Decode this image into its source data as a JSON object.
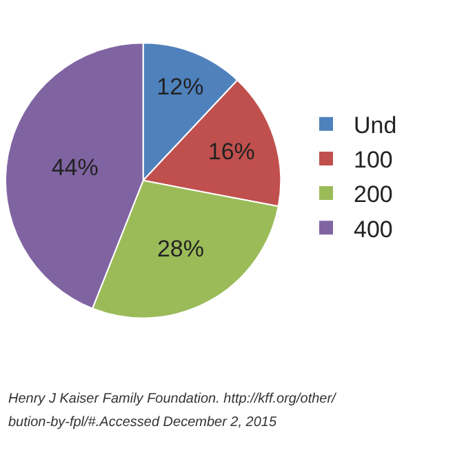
{
  "chart_data": {
    "type": "pie",
    "categories": [
      "Und",
      "100",
      "200",
      "400"
    ],
    "values": [
      12,
      16,
      28,
      44
    ],
    "colors": [
      "#4f81bd",
      "#c0504d",
      "#9bbb59",
      "#8064a2"
    ],
    "value_labels": [
      "12%",
      "16%",
      "28%",
      "44%"
    ],
    "legend": "right",
    "annotations": [
      "Henry J Kaiser Family Foundation. http://kff.org/other/",
      "bution-by-fpl/#.Accessed December 2, 2015"
    ]
  }
}
